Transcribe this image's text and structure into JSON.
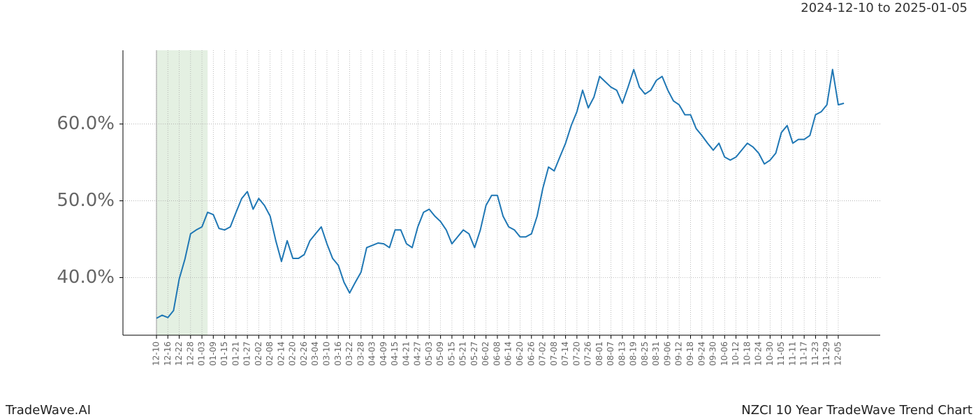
{
  "chart_data": {
    "type": "line",
    "title": "NZCI 10 Year TradeWave Trend Chart",
    "subtitle": "2024-12-10 to 2025-01-05",
    "brand": "TradeWave.AI",
    "categories": [
      "12-10",
      null,
      "12-16",
      null,
      "12-22",
      null,
      "12-28",
      null,
      "01-03",
      null,
      "01-09",
      null,
      "01-15",
      null,
      "01-21",
      null,
      "01-27",
      null,
      "02-02",
      null,
      "02-08",
      null,
      "02-14",
      null,
      "02-20",
      null,
      "02-26",
      null,
      "03-04",
      null,
      "03-10",
      null,
      "03-16",
      null,
      "03-22",
      null,
      "03-28",
      null,
      "04-03",
      null,
      "04-09",
      null,
      "04-15",
      null,
      "04-21",
      null,
      "04-27",
      null,
      "05-03",
      null,
      "05-09",
      null,
      "05-15",
      null,
      "05-21",
      null,
      "05-27",
      null,
      "06-02",
      null,
      "06-08",
      null,
      "06-14",
      null,
      "06-20",
      null,
      "06-26",
      null,
      "07-02",
      null,
      "07-08",
      null,
      "07-14",
      null,
      "07-20",
      null,
      "07-26",
      null,
      "08-01",
      null,
      "08-07",
      null,
      "08-13",
      null,
      "08-19",
      null,
      "08-25",
      null,
      "08-31",
      null,
      "09-06",
      null,
      "09-12",
      null,
      "09-18",
      null,
      "09-24",
      null,
      "09-30",
      null,
      "10-06",
      null,
      "10-12",
      null,
      "10-18",
      null,
      "10-24",
      null,
      "10-30",
      null,
      "11-05",
      null,
      "11-11",
      null,
      "11-17",
      null,
      "11-23",
      null,
      "11-29",
      null,
      "12-05",
      null
    ],
    "series": [
      {
        "color": "#1f77b4",
        "values": [
          34.7,
          35.1,
          34.8,
          35.7,
          39.8,
          42.4,
          45.7,
          46.2,
          46.6,
          48.5,
          48.2,
          46.4,
          46.2,
          46.6,
          48.5,
          50.3,
          51.2,
          48.9,
          50.3,
          49.4,
          48.0,
          44.8,
          42.1,
          44.8,
          42.5,
          42.5,
          43.0,
          44.8,
          45.7,
          46.6,
          44.4,
          42.5,
          41.6,
          39.4,
          38.0,
          39.4,
          40.7,
          43.9,
          44.2,
          44.5,
          44.4,
          43.9,
          46.2,
          46.2,
          44.4,
          43.9,
          46.6,
          48.5,
          48.9,
          48.0,
          47.3,
          46.2,
          44.4,
          45.3,
          46.2,
          45.7,
          43.9,
          46.2,
          49.4,
          50.7,
          50.7,
          48.0,
          46.6,
          46.2,
          45.3,
          45.3,
          45.7,
          48.0,
          51.6,
          54.4,
          53.9,
          55.7,
          57.5,
          59.8,
          61.6,
          64.4,
          62.1,
          63.5,
          66.2,
          65.5,
          64.8,
          64.4,
          62.7,
          64.8,
          67.1,
          64.8,
          63.9,
          64.4,
          65.7,
          66.2,
          64.4,
          63.0,
          62.5,
          61.2,
          61.2,
          59.4,
          58.5,
          57.5,
          56.6,
          57.5,
          55.7,
          55.3,
          55.7,
          56.6,
          57.5,
          57.0,
          56.2,
          54.8,
          55.3,
          56.2,
          58.9,
          59.8,
          57.5,
          58.0,
          58.0,
          58.5,
          61.2,
          61.6,
          62.5,
          67.1,
          62.5,
          62.7
        ]
      }
    ],
    "ylim": [
      32.5,
      69.6
    ],
    "yticks": [
      {
        "value": 40,
        "label": "40.0%"
      },
      {
        "value": 50,
        "label": "50.0%"
      },
      {
        "value": 60,
        "label": "60.0%"
      }
    ],
    "grid": true,
    "highlight_range": [
      0,
      9
    ],
    "highlight_color": "#d9ead6"
  }
}
